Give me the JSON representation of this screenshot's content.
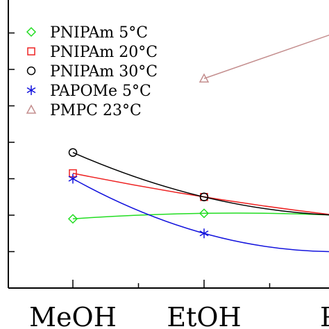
{
  "chart_data": {
    "type": "line",
    "categories": [
      "MeOH",
      "EtOH",
      "PrOH"
    ],
    "ylim": [
      0,
      8
    ],
    "grid": false,
    "legend_position": "top-left",
    "series": [
      {
        "name": "PNIPAm 5°C",
        "color": "#22dd22",
        "marker": "diamond",
        "values": [
          1.9,
          2.05,
          2.0
        ]
      },
      {
        "name": "PNIPAm 20°C",
        "color": "#ee2222",
        "marker": "square",
        "values": [
          3.15,
          2.5,
          2.0
        ]
      },
      {
        "name": "PNIPAm 30°C",
        "color": "#000000",
        "marker": "circle",
        "values": [
          3.72,
          2.5,
          2.0
        ]
      },
      {
        "name": "PAPOMe 5°C",
        "color": "#1111dd",
        "marker": "asterisk",
        "values": [
          3.0,
          1.5,
          1.0
        ]
      },
      {
        "name": "PMPC 23°C",
        "color": "#c48e8e",
        "marker": "triangle",
        "values": [
          null,
          5.75,
          7.0
        ]
      }
    ],
    "x_tick_labels": [
      "MeOH",
      "EtOH",
      "Pr"
    ]
  }
}
